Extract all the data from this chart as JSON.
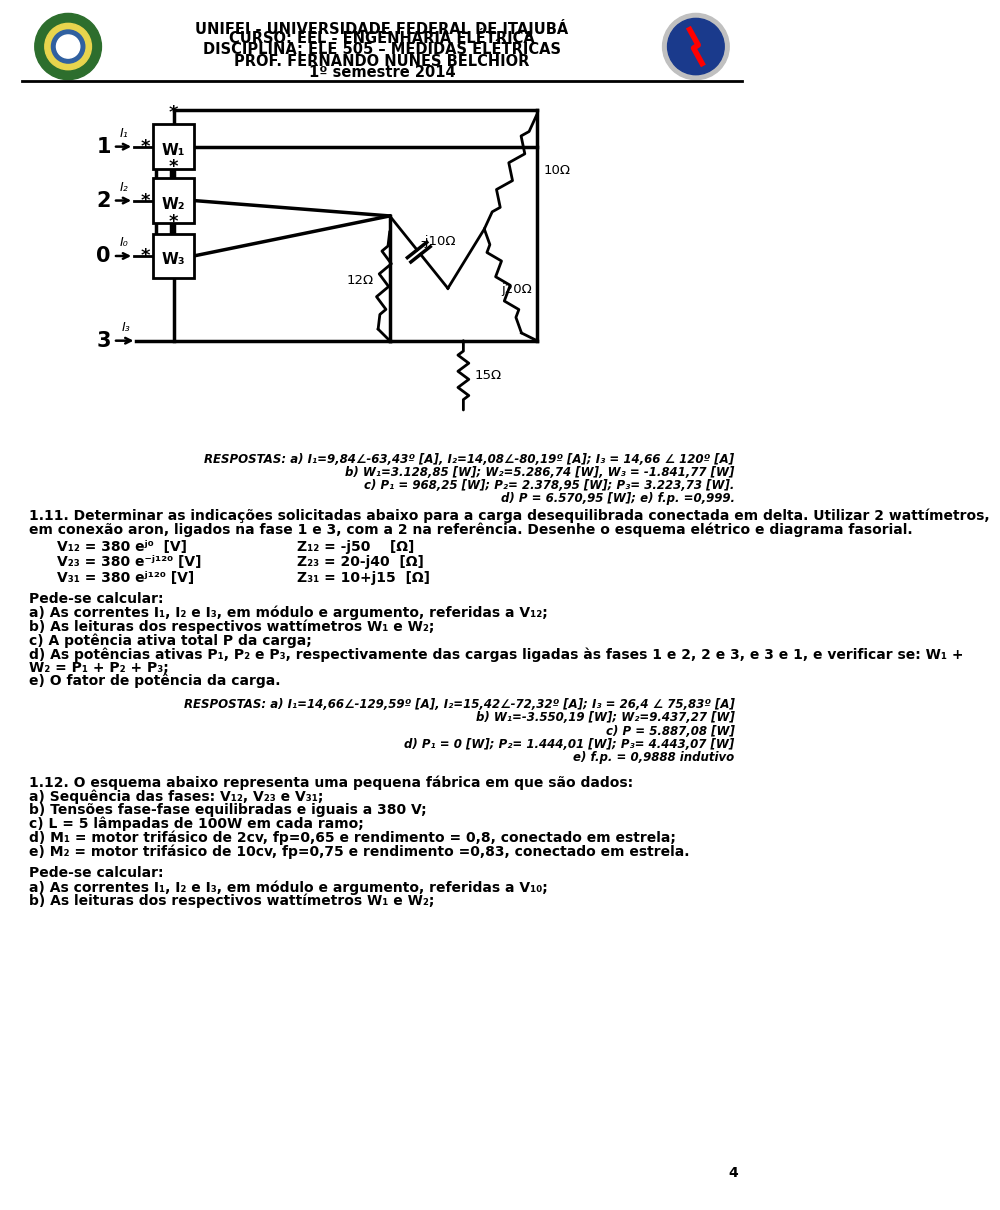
{
  "header_line1": "UNIFEI - UNIVERSIDADE FEDERAL DE ITAJUBÁ",
  "header_line2": "CURSO: EEL - ENGENHARIA ELÉTRICA",
  "header_line3": "DISCIPLINA: ELE 505 – MEDIDAS ELÉTRICAS",
  "header_line4": "PROF. FERNANDO NUNES BELCHIOR",
  "header_line5": "1º semestre 2014",
  "bg_color": "#ffffff",
  "respostas_1": "RESPOSTAS: a) I₁=9,84∠-63,43º [A], I₂=14,08∠-80,19º [A]; I₃ = 14,66 ∠ 120º [A]",
  "respostas_2": "b) W₁=3.128,85 [W]; W₂=5.286,74 [W], W₃ = -1.841,77 [W]",
  "respostas_3": "c) P₁ = 968,25 [W]; P₂= 2.378,95 [W]; P₃= 3.223,73 [W].",
  "respostas_4": "d) P = 6.570,95 [W]; e) f.p. =0,999.",
  "p111_text": "1.11. Determinar as indicações solicitadas abaixo para a carga desequilibrada conectada em delta. Utilizar 2 wattímetros,",
  "p111_text2": "em conexão aron, ligados na fase 1 e 3, com a 2 na referência. Desenhe o esquema elétrico e diagrama fasorial.",
  "V12": "V₁₂ = 380 eʲ⁰  [V]",
  "V23": "V₂₃ = 380 e⁻ʲ¹²⁰ [V]",
  "V31": "V₃₁ = 380 eʲ¹²⁰ [V]",
  "Z12": "Z₁₂ = -j50    [Ω]",
  "Z23": "Z₂₃ = 20-j40  [Ω]",
  "Z31": "Z₃₁ = 10+j15  [Ω]",
  "pede_calcular": "Pede-se calcular:",
  "calc_a": "a) As correntes I₁, I₂ e I₃, em módulo e argumento, referidas a V₁₂;",
  "calc_b": "b) As leituras dos respectivos wattímetros W₁ e W₂;",
  "calc_c": "c) A potência ativa total P da carga;",
  "calc_d1": "d) As potências ativas P₁, P₂ e P₃, respectivamente das cargas ligadas às fases 1 e 2, 2 e 3, e 3 e 1, e verificar se: W₁ +",
  "calc_d2": "W₂ = P₁ + P₂ + P₃;",
  "calc_e": "e) O fator de potência da carga.",
  "resp2_a": "RESPOSTAS: a) I₁=14,66∠-129,59º [A], I₂=15,42∠-72,32º [A]; I₃ = 26,4 ∠ 75,83º [A]",
  "resp2_b": "b) W₁=-3.550,19 [W]; W₂=9.437,27 [W]",
  "resp2_c": "c) P = 5.887,08 [W]",
  "resp2_d": "d) P₁ = 0 [W]; P₂= 1.444,01 [W]; P₃= 4.443,07 [W]",
  "resp2_e": "e) f.p. = 0,9888 indutivo",
  "p112_text": "1.12. O esquema abaixo representa uma pequena fábrica em que são dados:",
  "p112_a": "a) Sequência das fases: V₁₂, V₂₃ e V₃₁;",
  "p112_b": "b) Tensões fase-fase equilibradas e iguais a 380 V;",
  "p112_c": "c) L = 5 lâmpadas de 100W em cada ramo;",
  "p112_d": "d) M₁ = motor trifásico de 2cv, fp=0,65 e rendimento = 0,8, conectado em estrela;",
  "p112_e": "e) M₂ = motor trifásico de 10cv, fp=0,75 e rendimento =0,83, conectado em estrela.",
  "p112_calc_a": "a) As correntes I₁, I₂ e I₃, em módulo e argumento, referidas a V₁₀;",
  "p112_calc_b": "b) As leituras dos respectivos wattímetros W₁ e W₂;",
  "page_num": "4"
}
